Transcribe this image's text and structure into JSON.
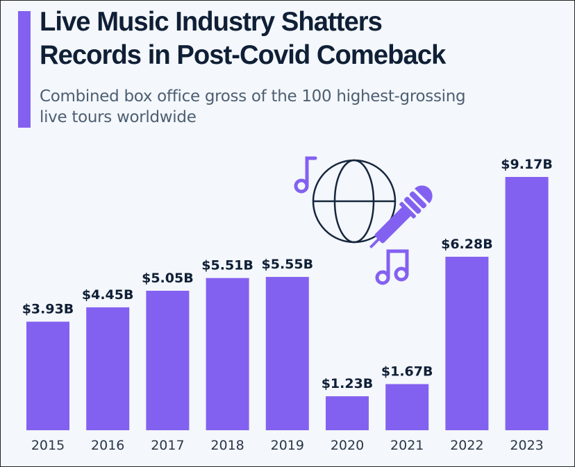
{
  "header": {
    "title_line1": "Live Music Industry Shatters",
    "title_line2": "Records in Post-Covid Comeback",
    "subtitle_line1": "Combined box office gross of the 100 highest-grossing",
    "subtitle_line2": "live tours worldwide"
  },
  "colors": {
    "bar": "#8361f0",
    "title": "#0f1f36",
    "background": "#f4f7fb"
  },
  "icons": [
    "music-note-icon",
    "globe-icon",
    "microphone-icon",
    "double-music-note-icon"
  ],
  "chart_data": {
    "type": "bar",
    "title": "Live Music Industry Shatters Records in Post-Covid Comeback",
    "subtitle": "Combined box office gross of the 100 highest-grossing live tours worldwide",
    "xlabel": "",
    "ylabel": "",
    "categories": [
      "2015",
      "2016",
      "2017",
      "2018",
      "2019",
      "2020",
      "2021",
      "2022",
      "2023"
    ],
    "values": [
      3.93,
      4.45,
      5.05,
      5.51,
      5.55,
      1.23,
      1.67,
      6.28,
      9.17
    ],
    "value_labels": [
      "$3.93B",
      "$4.45B",
      "$5.05B",
      "$5.51B",
      "$5.55B",
      "$1.23B",
      "$1.67B",
      "$6.28B",
      "$9.17B"
    ],
    "unit": "billion USD",
    "ylim": [
      0,
      9.17
    ],
    "grid": false,
    "legend": "none"
  }
}
